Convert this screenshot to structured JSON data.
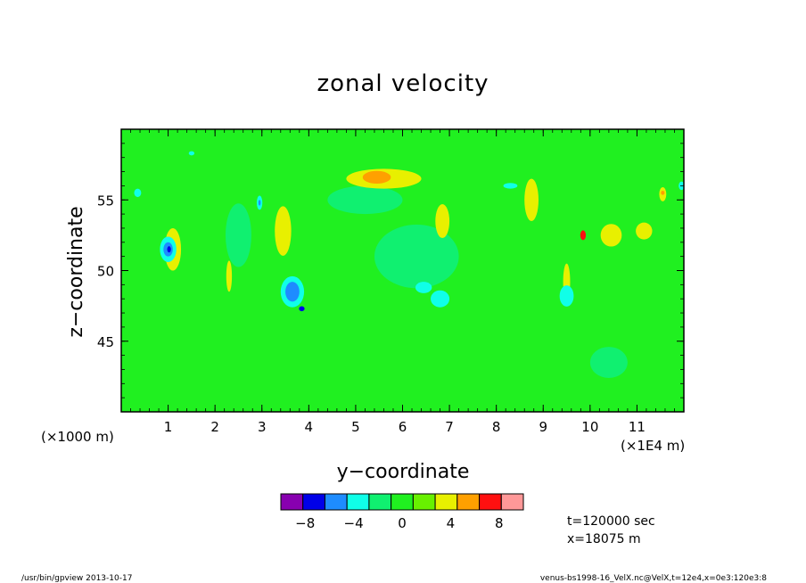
{
  "chart_data": {
    "type": "heatmap",
    "title": "zonal velocity",
    "xlabel": "y−coordinate",
    "ylabel": "z−coordinate",
    "x_scale_note": "(×1000 m)",
    "x_unit_note": "(×1E4 m)",
    "xlim": [
      0,
      12
    ],
    "ylim": [
      40,
      60
    ],
    "x_ticks": [
      "1",
      "2",
      "3",
      "4",
      "5",
      "6",
      "7",
      "8",
      "9",
      "10",
      "11"
    ],
    "x_tick_values": [
      1,
      2,
      3,
      4,
      5,
      6,
      7,
      8,
      9,
      10,
      11
    ],
    "y_ticks": [
      "45",
      "50",
      "55"
    ],
    "y_tick_values": [
      45,
      50,
      55
    ],
    "colorbar": {
      "levels": [
        -10,
        -8,
        -6,
        -4,
        -2,
        0,
        2,
        4,
        6,
        8,
        10
      ],
      "colors": [
        "#8800b0",
        "#0000e8",
        "#1e8cff",
        "#10ffe8",
        "#10f070",
        "#20f020",
        "#68f000",
        "#e8f000",
        "#ffa000",
        "#ff1010",
        "#ff9898"
      ],
      "labels": [
        "−8",
        "−4",
        "0",
        "4",
        "8"
      ],
      "label_values": [
        -8,
        -4,
        0,
        4,
        8
      ]
    },
    "background_color": "#20f020",
    "regions": [
      {
        "level": "0..2",
        "color": "#10f070",
        "y": 2.5,
        "z": 52.5,
        "wy": 0.55,
        "wz": 4.5
      },
      {
        "level": "0..2",
        "color": "#10f070",
        "y": 6.3,
        "z": 51.0,
        "wy": 1.8,
        "wz": 4.5
      },
      {
        "level": "0..2",
        "color": "#10f070",
        "y": 10.4,
        "z": 43.5,
        "wy": 0.8,
        "wz": 2.2
      },
      {
        "level": "0..2",
        "color": "#10f070",
        "y": 5.2,
        "z": 55.0,
        "wy": 1.6,
        "wz": 2.0
      },
      {
        "level": "4..6",
        "color": "#e8f000",
        "y": 5.6,
        "z": 56.5,
        "wy": 1.6,
        "wz": 1.4
      },
      {
        "level": "6..8",
        "color": "#ffa000",
        "y": 5.45,
        "z": 56.6,
        "wy": 0.6,
        "wz": 0.9
      },
      {
        "level": "4..6",
        "color": "#e8f000",
        "y": 1.1,
        "z": 51.5,
        "wy": 0.35,
        "wz": 3.0
      },
      {
        "level": "4..6",
        "color": "#e8f000",
        "y": 3.45,
        "z": 52.8,
        "wy": 0.35,
        "wz": 3.5
      },
      {
        "level": "4..6",
        "color": "#e8f000",
        "y": 10.45,
        "z": 52.5,
        "wy": 0.45,
        "wz": 1.6
      },
      {
        "level": "4..6",
        "color": "#e8f000",
        "y": 11.15,
        "z": 52.8,
        "wy": 0.35,
        "wz": 1.2
      },
      {
        "level": "4..6",
        "color": "#e8f000",
        "y": 6.85,
        "z": 53.5,
        "wy": 0.3,
        "wz": 2.4
      },
      {
        "level": "4..6",
        "color": "#e8f000",
        "y": 8.75,
        "z": 55.0,
        "wy": 0.3,
        "wz": 3.0
      },
      {
        "level": "4..6",
        "color": "#e8f000",
        "y": 2.3,
        "z": 49.6,
        "wy": 0.12,
        "wz": 2.2
      },
      {
        "level": "4..6",
        "color": "#e8f000",
        "y": 9.5,
        "z": 49.2,
        "wy": 0.15,
        "wz": 2.6
      },
      {
        "level": "4..6",
        "color": "#e8f000",
        "y": 11.55,
        "z": 55.4,
        "wy": 0.15,
        "wz": 1.0
      },
      {
        "level": "8..10",
        "color": "#ff1010",
        "y": 9.85,
        "z": 52.5,
        "wy": 0.12,
        "wz": 0.7
      },
      {
        "level": "6..8",
        "color": "#ffa000",
        "y": 11.55,
        "z": 55.5,
        "wy": 0.08,
        "wz": 0.3
      },
      {
        "level": "-4..-2",
        "color": "#10ffe8",
        "y": 1.0,
        "z": 51.5,
        "wy": 0.35,
        "wz": 1.8
      },
      {
        "level": "-6..-4",
        "color": "#1e8cff",
        "y": 1.0,
        "z": 51.5,
        "wy": 0.2,
        "wz": 1.0
      },
      {
        "level": "-8..-6",
        "color": "#0000e8",
        "y": 1.02,
        "z": 51.5,
        "wy": 0.08,
        "wz": 0.45
      },
      {
        "level": "-4..-2",
        "color": "#10ffe8",
        "y": 3.65,
        "z": 48.5,
        "wy": 0.5,
        "wz": 2.2
      },
      {
        "level": "-6..-4",
        "color": "#1e8cff",
        "y": 3.65,
        "z": 48.5,
        "wy": 0.3,
        "wz": 1.4
      },
      {
        "level": "-8..-6",
        "color": "#0000e8",
        "y": 3.85,
        "z": 47.3,
        "wy": 0.12,
        "wz": 0.35
      },
      {
        "level": "-4..-2",
        "color": "#10ffe8",
        "y": 2.95,
        "z": 54.8,
        "wy": 0.12,
        "wz": 1.0
      },
      {
        "level": "-6..-4",
        "color": "#1e8cff",
        "y": 2.95,
        "z": 54.8,
        "wy": 0.05,
        "wz": 0.4
      },
      {
        "level": "-4..-2",
        "color": "#10ffe8",
        "y": 6.8,
        "z": 48.0,
        "wy": 0.4,
        "wz": 1.2
      },
      {
        "level": "-4..-2",
        "color": "#10ffe8",
        "y": 6.45,
        "z": 48.8,
        "wy": 0.35,
        "wz": 0.8
      },
      {
        "level": "-4..-2",
        "color": "#10ffe8",
        "y": 9.5,
        "z": 48.2,
        "wy": 0.3,
        "wz": 1.5
      },
      {
        "level": "-4..-2",
        "color": "#10ffe8",
        "y": 0.35,
        "z": 55.5,
        "wy": 0.15,
        "wz": 0.6
      },
      {
        "level": "-4..-2",
        "color": "#10ffe8",
        "y": 8.3,
        "z": 56.0,
        "wy": 0.3,
        "wz": 0.4
      },
      {
        "level": "-4..-2",
        "color": "#10ffe8",
        "y": 11.95,
        "z": 56.0,
        "wy": 0.12,
        "wz": 0.6
      },
      {
        "level": "-4..-2",
        "color": "#10ffe8",
        "y": 1.5,
        "z": 58.3,
        "wy": 0.12,
        "wz": 0.3
      }
    ],
    "annotations": [
      "t=120000 sec",
      "x=18075 m"
    ]
  },
  "footer": {
    "left": "/usr/bin/gpview   2013-10-17",
    "right": "venus-bs1998-16_VelX.nc@VelX,t=12e4,x=0e3:120e3:8"
  }
}
